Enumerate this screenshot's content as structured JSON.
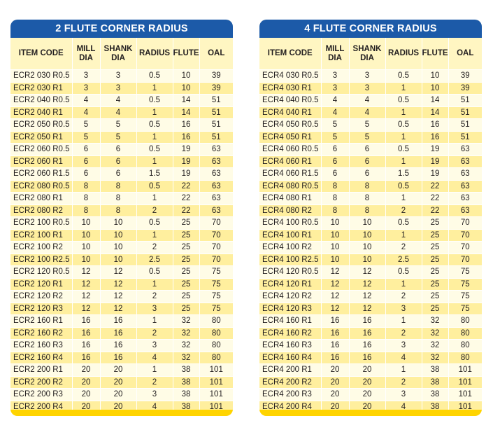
{
  "left": {
    "title": "2 FLUTE CORNER RADIUS",
    "headers": [
      "ITEM CODE",
      "MILL DIA",
      "SHANK DIA",
      "RADIUS",
      "FLUTE",
      "OAL"
    ],
    "rows": [
      [
        "ECR2 030 R0.5",
        "3",
        "3",
        "0.5",
        "10",
        "39"
      ],
      [
        "ECR2 030 R1",
        "3",
        "3",
        "1",
        "10",
        "39"
      ],
      [
        "ECR2 040 R0.5",
        "4",
        "4",
        "0.5",
        "14",
        "51"
      ],
      [
        "ECR2 040 R1",
        "4",
        "4",
        "1",
        "14",
        "51"
      ],
      [
        "ECR2 050 R0.5",
        "5",
        "5",
        "0.5",
        "16",
        "51"
      ],
      [
        "ECR2 050 R1",
        "5",
        "5",
        "1",
        "16",
        "51"
      ],
      [
        "ECR2 060 R0.5",
        "6",
        "6",
        "0.5",
        "19",
        "63"
      ],
      [
        "ECR2 060 R1",
        "6",
        "6",
        "1",
        "19",
        "63"
      ],
      [
        "ECR2 060 R1.5",
        "6",
        "6",
        "1.5",
        "19",
        "63"
      ],
      [
        "ECR2 080 R0.5",
        "8",
        "8",
        "0.5",
        "22",
        "63"
      ],
      [
        "ECR2 080 R1",
        "8",
        "8",
        "1",
        "22",
        "63"
      ],
      [
        "ECR2 080 R2",
        "8",
        "8",
        "2",
        "22",
        "63"
      ],
      [
        "ECR2 100 R0.5",
        "10",
        "10",
        "0.5",
        "25",
        "70"
      ],
      [
        "ECR2 100 R1",
        "10",
        "10",
        "1",
        "25",
        "70"
      ],
      [
        "ECR2 100 R2",
        "10",
        "10",
        "2",
        "25",
        "70"
      ],
      [
        "ECR2 100 R2.5",
        "10",
        "10",
        "2.5",
        "25",
        "70"
      ],
      [
        "ECR2 120 R0.5",
        "12",
        "12",
        "0.5",
        "25",
        "75"
      ],
      [
        "ECR2 120 R1",
        "12",
        "12",
        "1",
        "25",
        "75"
      ],
      [
        "ECR2 120 R2",
        "12",
        "12",
        "2",
        "25",
        "75"
      ],
      [
        "ECR2 120 R3",
        "12",
        "12",
        "3",
        "25",
        "75"
      ],
      [
        "ECR2 160 R1",
        "16",
        "16",
        "1",
        "32",
        "80"
      ],
      [
        "ECR2 160 R2",
        "16",
        "16",
        "2",
        "32",
        "80"
      ],
      [
        "ECR2 160 R3",
        "16",
        "16",
        "3",
        "32",
        "80"
      ],
      [
        "ECR2 160 R4",
        "16",
        "16",
        "4",
        "32",
        "80"
      ],
      [
        "ECR2 200 R1",
        "20",
        "20",
        "1",
        "38",
        "101"
      ],
      [
        "ECR2 200 R2",
        "20",
        "20",
        "2",
        "38",
        "101"
      ],
      [
        "ECR2 200 R3",
        "20",
        "20",
        "3",
        "38",
        "101"
      ],
      [
        "ECR2 200 R4",
        "20",
        "20",
        "4",
        "38",
        "101"
      ]
    ]
  },
  "right": {
    "title": "4 FLUTE CORNER RADIUS",
    "headers": [
      "ITEM CODE",
      "MILL DIA",
      "SHANK DIA",
      "RADIUS",
      "FLUTE",
      "OAL"
    ],
    "rows": [
      [
        "ECR4 030 R0.5",
        "3",
        "3",
        "0.5",
        "10",
        "39"
      ],
      [
        "ECR4 030 R1",
        "3",
        "3",
        "1",
        "10",
        "39"
      ],
      [
        "ECR4 040 R0.5",
        "4",
        "4",
        "0.5",
        "14",
        "51"
      ],
      [
        "ECR4 040 R1",
        "4",
        "4",
        "1",
        "14",
        "51"
      ],
      [
        "ECR4 050 R0.5",
        "5",
        "5",
        "0.5",
        "16",
        "51"
      ],
      [
        "ECR4 050 R1",
        "5",
        "5",
        "1",
        "16",
        "51"
      ],
      [
        "ECR4 060 R0.5",
        "6",
        "6",
        "0.5",
        "19",
        "63"
      ],
      [
        "ECR4 060 R1",
        "6",
        "6",
        "1",
        "19",
        "63"
      ],
      [
        "ECR4 060 R1.5",
        "6",
        "6",
        "1.5",
        "19",
        "63"
      ],
      [
        "ECR4 080 R0.5",
        "8",
        "8",
        "0.5",
        "22",
        "63"
      ],
      [
        "ECR4 080 R1",
        "8",
        "8",
        "1",
        "22",
        "63"
      ],
      [
        "ECR4 080 R2",
        "8",
        "8",
        "2",
        "22",
        "63"
      ],
      [
        "ECR4 100 R0.5",
        "10",
        "10",
        "0.5",
        "25",
        "70"
      ],
      [
        "ECR4 100 R1",
        "10",
        "10",
        "1",
        "25",
        "70"
      ],
      [
        "ECR4 100 R2",
        "10",
        "10",
        "2",
        "25",
        "70"
      ],
      [
        "ECR4 100 R2.5",
        "10",
        "10",
        "2.5",
        "25",
        "70"
      ],
      [
        "ECR4 120 R0.5",
        "12",
        "12",
        "0.5",
        "25",
        "75"
      ],
      [
        "ECR4 120 R1",
        "12",
        "12",
        "1",
        "25",
        "75"
      ],
      [
        "ECR4 120 R2",
        "12",
        "12",
        "2",
        "25",
        "75"
      ],
      [
        "ECR4 120 R3",
        "12",
        "12",
        "3",
        "25",
        "75"
      ],
      [
        "ECR4 160 R1",
        "16",
        "16",
        "1",
        "32",
        "80"
      ],
      [
        "ECR4 160 R2",
        "16",
        "16",
        "2",
        "32",
        "80"
      ],
      [
        "ECR4 160 R3",
        "16",
        "16",
        "3",
        "32",
        "80"
      ],
      [
        "ECR4 160 R4",
        "16",
        "16",
        "4",
        "32",
        "80"
      ],
      [
        "ECR4 200 R1",
        "20",
        "20",
        "1",
        "38",
        "101"
      ],
      [
        "ECR4 200 R2",
        "20",
        "20",
        "2",
        "38",
        "101"
      ],
      [
        "ECR4 200 R3",
        "20",
        "20",
        "3",
        "38",
        "101"
      ],
      [
        "ECR4 200 R4",
        "20",
        "20",
        "4",
        "38",
        "101"
      ]
    ]
  }
}
